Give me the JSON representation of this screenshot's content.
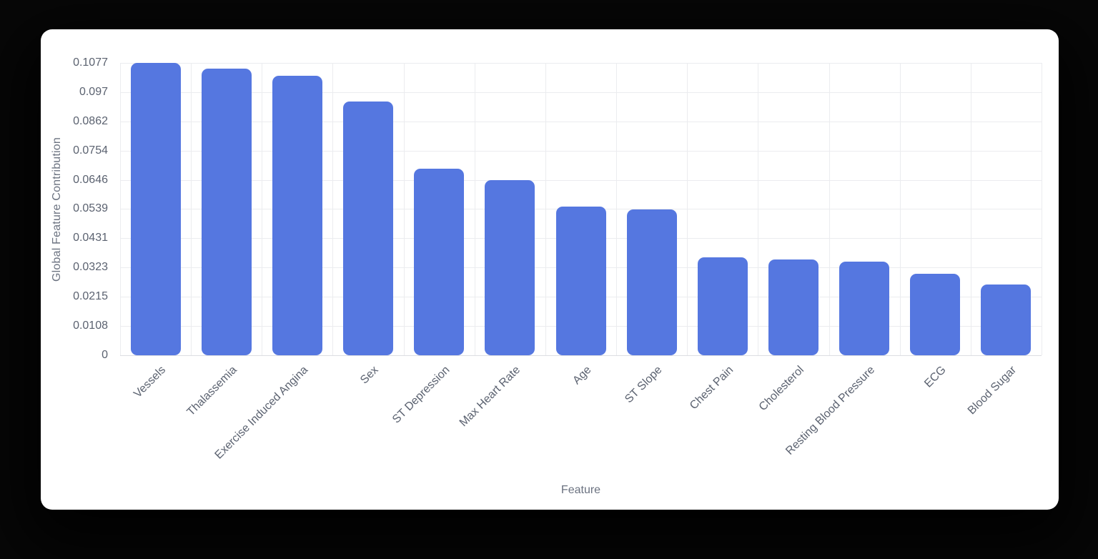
{
  "window": {
    "background_color": "#070707",
    "card_color": "#ffffff"
  },
  "chart_data": {
    "type": "bar",
    "title": "",
    "xlabel": "Feature",
    "ylabel": "Global Feature Contribution",
    "categories": [
      "Vessels",
      "Thalassemia",
      "Exercise Induced Angina",
      "Sex",
      "ST Depression",
      "Max Heart Rate",
      "Age",
      "ST Slope",
      "Chest Pain",
      "Cholesterol",
      "Resting Blood Pressure",
      "ECG",
      "Blood Sugar"
    ],
    "values": [
      0.1077,
      0.1056,
      0.1029,
      0.0935,
      0.0687,
      0.0646,
      0.0549,
      0.0536,
      0.0361,
      0.0354,
      0.0345,
      0.0301,
      0.0261
    ],
    "y_ticks": [
      0,
      0.0108,
      0.0215,
      0.0323,
      0.0431,
      0.0539,
      0.0646,
      0.0754,
      0.0862,
      0.097,
      0.1077
    ],
    "y_tick_labels": [
      "0",
      "0.0108",
      "0.0215",
      "0.0323",
      "0.0431",
      "0.0539",
      "0.0646",
      "0.0754",
      "0.0862",
      "0.097",
      "0.1077"
    ],
    "ylim": [
      0,
      0.1077
    ],
    "bar_color": "#5577e0",
    "grid": true,
    "legend": "none",
    "x_tick_rotation_deg": -45
  }
}
